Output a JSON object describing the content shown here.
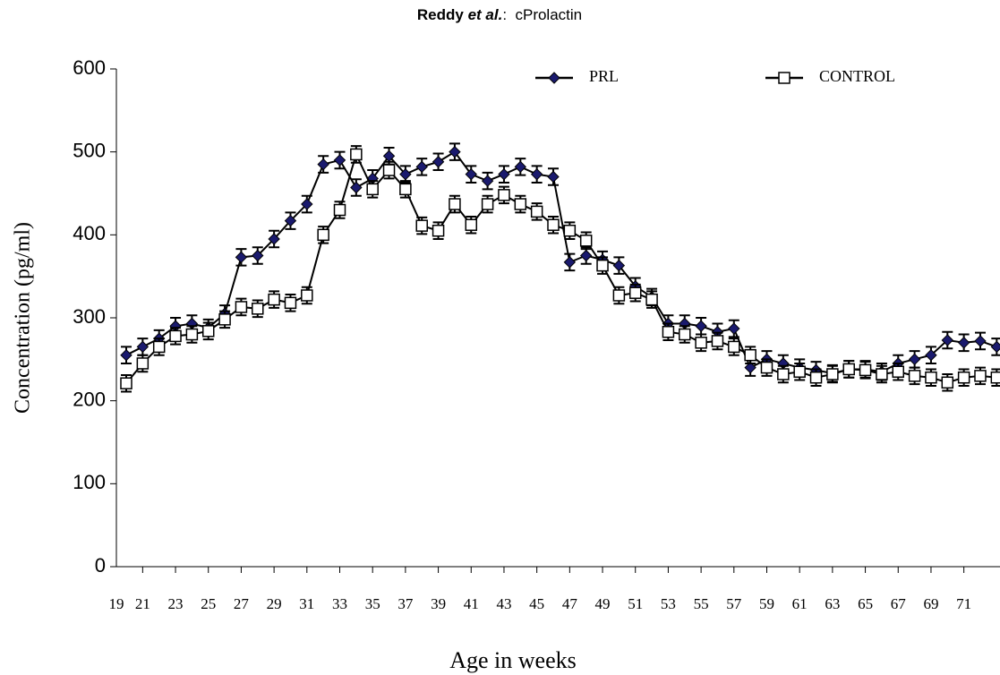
{
  "chart_data": {
    "type": "line",
    "title_parts": [
      "Reddy",
      "et al.",
      ":  cProlactin"
    ],
    "xlabel": "Age in weeks",
    "ylabel": "Concentration (pg/ml)",
    "x": [
      20,
      21,
      22,
      23,
      24,
      25,
      26,
      27,
      28,
      29,
      30,
      31,
      32,
      33,
      34,
      35,
      36,
      37,
      38,
      39,
      40,
      41,
      42,
      43,
      44,
      45,
      46,
      47,
      48,
      49,
      50,
      51,
      52,
      53,
      54,
      55,
      56,
      57,
      58,
      59,
      60,
      61,
      62,
      63,
      64,
      65,
      66,
      67,
      68,
      69,
      70,
      71,
      72,
      73
    ],
    "series": [
      {
        "name": "PRL",
        "color": "#1a1a6e",
        "marker": "diamond",
        "values": [
          255,
          265,
          275,
          290,
          293,
          288,
          305,
          373,
          375,
          395,
          417,
          437,
          485,
          490,
          457,
          468,
          495,
          473,
          482,
          488,
          500,
          473,
          465,
          473,
          482,
          473,
          470,
          367,
          375,
          370,
          363,
          338,
          325,
          293,
          293,
          290,
          283,
          287,
          240,
          250,
          245,
          240,
          237,
          233,
          238,
          238,
          235,
          245,
          250,
          255,
          273,
          270,
          272,
          265
        ],
        "errors": [
          10,
          10,
          10,
          10,
          10,
          10,
          10,
          10,
          10,
          10,
          10,
          10,
          10,
          10,
          10,
          10,
          10,
          10,
          10,
          10,
          10,
          10,
          10,
          10,
          10,
          10,
          10,
          10,
          10,
          10,
          10,
          10,
          10,
          10,
          10,
          10,
          10,
          10,
          10,
          10,
          10,
          10,
          10,
          10,
          10,
          10,
          10,
          10,
          10,
          10,
          10,
          10,
          10,
          10
        ]
      },
      {
        "name": "CONTROL",
        "color": "#ffffff",
        "marker": "square",
        "values": [
          221,
          245,
          265,
          278,
          280,
          284,
          298,
          313,
          311,
          322,
          318,
          327,
          400,
          430,
          497,
          455,
          478,
          455,
          411,
          405,
          437,
          412,
          437,
          448,
          437,
          428,
          412,
          405,
          393,
          363,
          327,
          330,
          322,
          283,
          280,
          270,
          272,
          265,
          255,
          240,
          232,
          235,
          228,
          232,
          238,
          237,
          232,
          235,
          230,
          228,
          222,
          228,
          230,
          228
        ],
        "errors": [
          10,
          10,
          10,
          10,
          10,
          10,
          10,
          10,
          10,
          10,
          10,
          10,
          10,
          10,
          10,
          10,
          10,
          10,
          10,
          10,
          10,
          10,
          10,
          10,
          10,
          10,
          10,
          10,
          10,
          10,
          10,
          10,
          10,
          10,
          10,
          10,
          10,
          10,
          10,
          10,
          10,
          10,
          10,
          10,
          10,
          10,
          10,
          10,
          10,
          10,
          10,
          10,
          10,
          10
        ]
      }
    ],
    "xlim": [
      19.4,
      73.2
    ],
    "xticks": [
      19,
      21,
      23,
      25,
      27,
      29,
      31,
      33,
      35,
      37,
      39,
      41,
      43,
      45,
      47,
      49,
      51,
      53,
      55,
      57,
      59,
      61,
      63,
      65,
      67,
      69,
      71
    ],
    "ylim": [
      0,
      600
    ],
    "yticks": [
      0,
      100,
      200,
      300,
      400,
      500,
      600
    ],
    "legend": "top"
  }
}
